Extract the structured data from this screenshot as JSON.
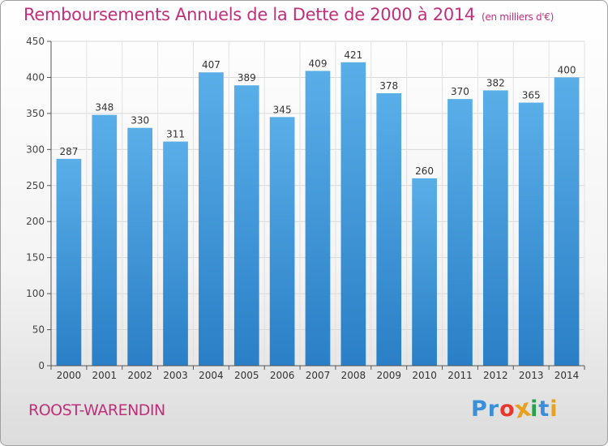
{
  "chart_data": {
    "type": "bar",
    "title": "Remboursements Annuels de la Dette de 2000 à 2014",
    "unit_label": "(en milliers d'€)",
    "categories": [
      "2000",
      "2001",
      "2002",
      "2003",
      "2004",
      "2005",
      "2006",
      "2007",
      "2008",
      "2009",
      "2010",
      "2011",
      "2012",
      "2013",
      "2014"
    ],
    "values": [
      287,
      348,
      330,
      311,
      407,
      389,
      345,
      409,
      421,
      378,
      260,
      370,
      382,
      365,
      400
    ],
    "ylim": [
      0,
      450
    ],
    "yticks": [
      0,
      50,
      100,
      150,
      200,
      250,
      300,
      350,
      400,
      450
    ],
    "xlabel": "",
    "ylabel": "",
    "grid": true,
    "bar_color_top": "#5aaee8",
    "bar_color_bottom": "#2a7fc6"
  },
  "footer": {
    "city": "ROOST-WARENDIN",
    "logo_letters": [
      "P",
      "r",
      "o",
      "x",
      "i",
      "t",
      "i"
    ],
    "logo_colors": [
      "#3a8fd8",
      "#3a8fd8",
      "#e8382e",
      "#e8a020",
      "#2aa04a",
      "#3a8fd8",
      "#e8a020"
    ]
  },
  "colors": {
    "accent": "#c0307a"
  }
}
